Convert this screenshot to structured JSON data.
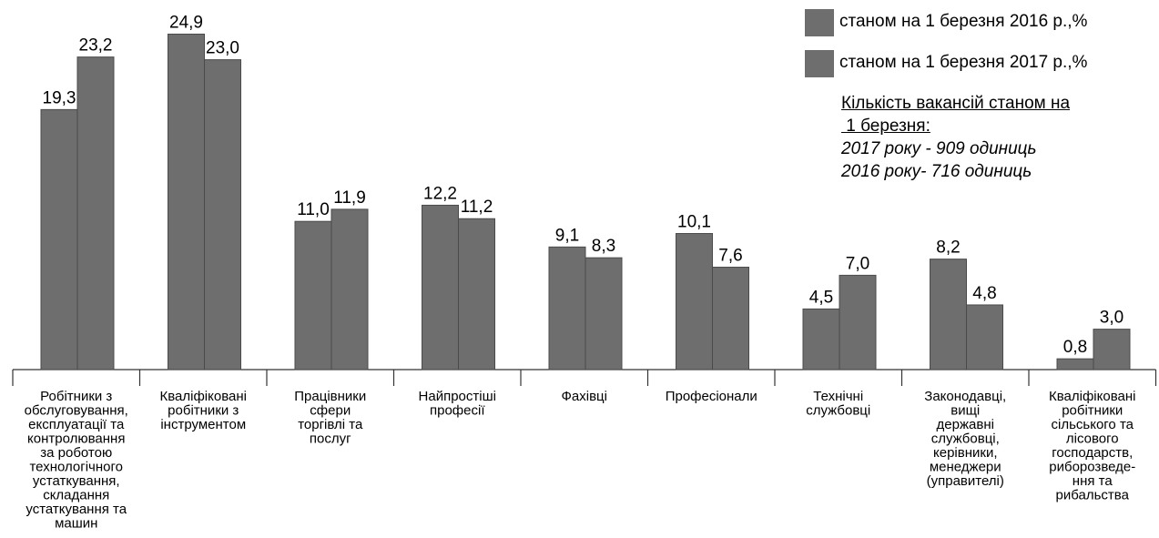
{
  "chart_data": {
    "type": "bar",
    "categories": [
      "Робітники з обслуговування, експлуатації та контролювання за роботою технологічного устаткування, складання устаткування та машин",
      "Кваліфіковані робітники з інструментом",
      "Працівники сфери торгівлі та послуг",
      "Найпростіші професії",
      "Фахівці",
      "Професіонали",
      "Технічні службовці",
      "Законодавці, вищі державні службовці, керівники, менеджери (управителі)",
      "Кваліфіковані робітники сільського та лісового господарств, риборозведе-ння та рибальства"
    ],
    "category_lines": [
      [
        "Робітники з",
        "обслуговування,",
        "експлуатації та",
        "контролювання",
        "за роботою",
        "технологічного",
        "устаткування,",
        "складання",
        "устаткування та",
        "машин"
      ],
      [
        "Кваліфіковані",
        "робітники з",
        "інструментом"
      ],
      [
        "Працівники",
        "сфери",
        "торгівлі та",
        "послуг"
      ],
      [
        "Найпростіші",
        "професії"
      ],
      [
        "Фахівці"
      ],
      [
        "Професіонали"
      ],
      [
        "Технічні",
        "службовці"
      ],
      [
        "Законодавці,",
        "вищі",
        "державні",
        "службовці,",
        "керівники,",
        "менеджери",
        "(управителі)"
      ],
      [
        "Кваліфіковані",
        "робітники",
        "сільського та",
        "лісового",
        "господарств,",
        "риборозведе-",
        "ння та",
        "рибальства"
      ]
    ],
    "series": [
      {
        "name": "станом на 1 березня 2016 р.,%",
        "values": [
          19.3,
          24.9,
          11.0,
          12.2,
          9.1,
          10.1,
          4.5,
          8.2,
          0.8
        ],
        "labels": [
          "19,3",
          "24,9",
          "11,0",
          "12,2",
          "9,1",
          "10,1",
          "4,5",
          "8,2",
          "0,8"
        ],
        "color": "#6e6e6e"
      },
      {
        "name": "станом на 1 березня 2017 р.,%",
        "values": [
          23.2,
          23.0,
          11.9,
          11.2,
          8.3,
          7.6,
          7.0,
          4.8,
          3.0
        ],
        "labels": [
          "23,2",
          "23,0",
          "11,9",
          "11,2",
          "8,3",
          "7,6",
          "7,0",
          "4,8",
          "3,0"
        ],
        "color": "#6e6e6e"
      }
    ],
    "ylim": [
      0,
      25
    ],
    "grid": false,
    "legend": "top-right",
    "bar_edge_color": "#4a4a4a"
  },
  "notes": {
    "title_line1": "Кількість вакансій станом на",
    "title_line2": " 1 березня:",
    "line1": "2017 року - 909 одиниць",
    "line2": "2016 року- 716 одиниць"
  }
}
